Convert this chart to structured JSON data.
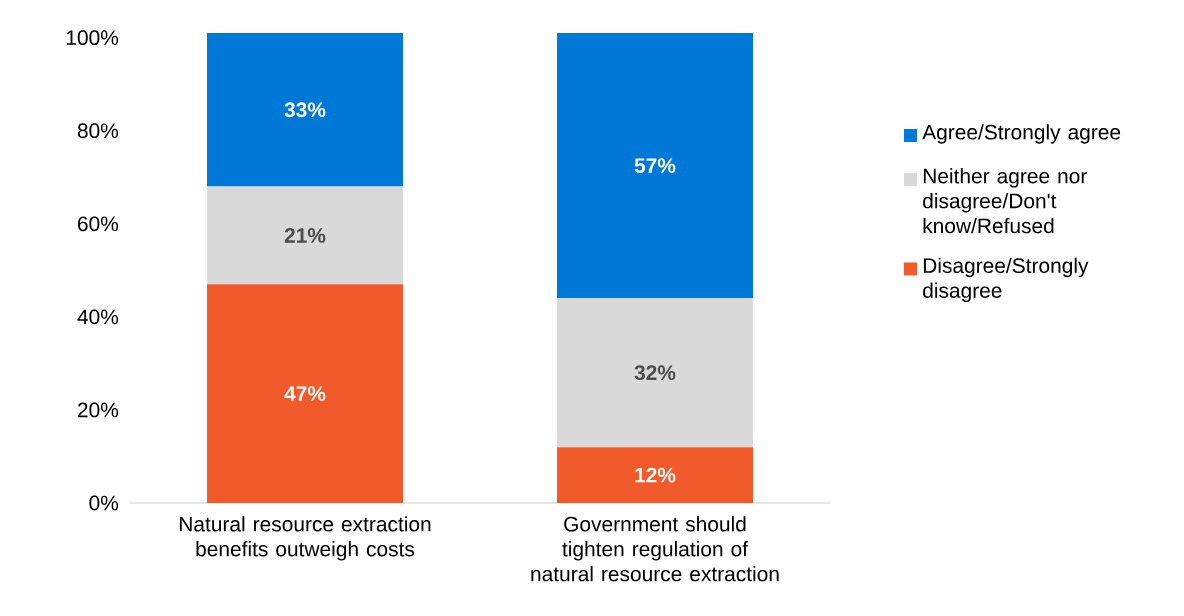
{
  "chart_data": {
    "type": "bar",
    "stacked": true,
    "categories": [
      "Natural resource extraction benefits outweigh costs",
      "Government should tighten regulation of natural resource extraction"
    ],
    "series": [
      {
        "name": "Disagree/Strongly disagree",
        "color": "#f15a2b",
        "values": [
          47,
          12
        ],
        "value_labels": [
          "47%",
          "12%"
        ]
      },
      {
        "name": "Neither agree nor disagree/Don't know/Refused",
        "color": "#d9d9d9",
        "values": [
          21,
          32
        ],
        "value_labels": [
          "21%",
          "32%"
        ]
      },
      {
        "name": "Agree/Strongly agree",
        "color": "#0078d7",
        "values": [
          33,
          57
        ],
        "value_labels": [
          "33%",
          "57%"
        ]
      }
    ],
    "ylim": [
      0,
      101
    ],
    "yticks": [
      {
        "value": 0,
        "label": "0%"
      },
      {
        "value": 20,
        "label": "20%"
      },
      {
        "value": 40,
        "label": "40%"
      },
      {
        "value": 60,
        "label": "60%"
      },
      {
        "value": 80,
        "label": "80%"
      },
      {
        "value": 100,
        "label": "100%"
      }
    ],
    "legend": "right"
  }
}
